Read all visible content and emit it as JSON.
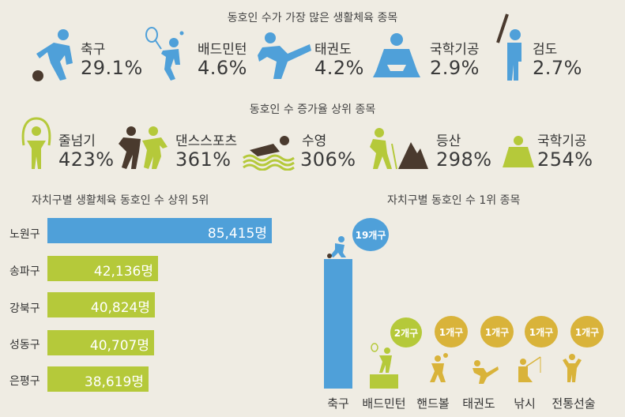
{
  "colors": {
    "blue": "#4fa0d9",
    "green": "#b5c93a",
    "dark": "#4a3a2e",
    "gold": "#d9b33a"
  },
  "section1": {
    "title": "동호인 수가 가장 많은 생활체육 종목",
    "items": [
      {
        "label": "축구",
        "value": "29.1%",
        "icon": "soccer-player-icon"
      },
      {
        "label": "배드민턴",
        "value": "4.6%",
        "icon": "badminton-player-icon"
      },
      {
        "label": "태권도",
        "value": "4.2%",
        "icon": "taekwondo-kick-icon"
      },
      {
        "label": "국학기공",
        "value": "2.9%",
        "icon": "meditation-icon"
      },
      {
        "label": "검도",
        "value": "2.7%",
        "icon": "kendo-icon"
      }
    ]
  },
  "section2": {
    "title": "동호인 수 증가율 상위 종목",
    "items": [
      {
        "label": "줄넘기",
        "value": "423%",
        "icon": "jump-rope-icon"
      },
      {
        "label": "댄스스포츠",
        "value": "361%",
        "icon": "dance-couple-icon"
      },
      {
        "label": "수영",
        "value": "306%",
        "icon": "swimmer-icon"
      },
      {
        "label": "등산",
        "value": "298%",
        "icon": "hiker-icon"
      },
      {
        "label": "국학기공",
        "value": "254%",
        "icon": "meditation-icon"
      }
    ]
  },
  "section3": {
    "title": "자치구별 생활체육 동호인 수 상위 5위",
    "rows": [
      {
        "district": "노원구",
        "value": "85,415명",
        "num": 85415
      },
      {
        "district": "송파구",
        "value": "42,136명",
        "num": 42136
      },
      {
        "district": "강북구",
        "value": "40,824명",
        "num": 40824
      },
      {
        "district": "성동구",
        "value": "40,707명",
        "num": 40707
      },
      {
        "district": "은평구",
        "value": "38,619명",
        "num": 38619
      }
    ]
  },
  "section4": {
    "title": "자치구별 동호인 수 1위 종목",
    "items": [
      {
        "label": "축구",
        "count": "19개구",
        "num": 19
      },
      {
        "label": "배드민턴",
        "count": "2개구",
        "num": 2
      },
      {
        "label": "핸드볼",
        "count": "1개구",
        "num": 1
      },
      {
        "label": "태권도",
        "count": "1개구",
        "num": 1
      },
      {
        "label": "낚시",
        "count": "1개구",
        "num": 1
      },
      {
        "label": "전통선술",
        "count": "1개구",
        "num": 1
      }
    ]
  }
}
